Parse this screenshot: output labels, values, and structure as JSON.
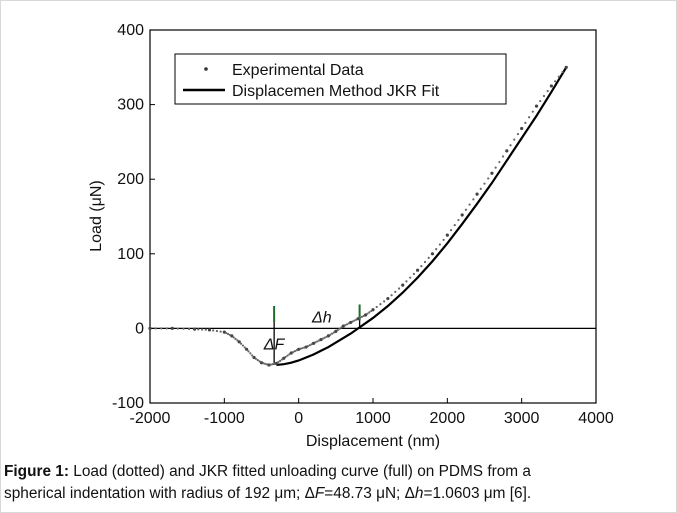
{
  "chart_data": {
    "type": "scatter",
    "xlabel": "Displacement (nm)",
    "ylabel": "Load (μN)",
    "xlim": [
      -2000,
      4000
    ],
    "ylim": [
      -100,
      400
    ],
    "xticks": [
      "-2000",
      "-1000",
      "0",
      "1000",
      "2000",
      "3000",
      "4000"
    ],
    "yticks": [
      "-100",
      "0",
      "100",
      "200",
      "300",
      "400"
    ],
    "grid": false,
    "legend_position": "top-left",
    "series": [
      {
        "name": "Experimental Data",
        "style": "dotted",
        "x": [
          -2000,
          -1700,
          -1400,
          -1200,
          -1000,
          -900,
          -800,
          -700,
          -600,
          -500,
          -400,
          -300,
          -200,
          -100,
          0,
          100,
          200,
          300,
          400,
          500,
          600,
          700,
          800,
          900,
          1000,
          1200,
          1400,
          1600,
          1800,
          2000,
          2200,
          2400,
          2600,
          2800,
          3000,
          3200,
          3400,
          3600
        ],
        "y": [
          0,
          0,
          -1,
          -2,
          -5,
          -10,
          -18,
          -28,
          -39,
          -46,
          -49,
          -47,
          -40,
          -33,
          -28,
          -25,
          -20,
          -15,
          -10,
          -4,
          3,
          8,
          13,
          18,
          25,
          40,
          58,
          78,
          100,
          125,
          152,
          180,
          208,
          238,
          268,
          298,
          325,
          350
        ]
      },
      {
        "name": "Displacemen Method JKR Fit",
        "style": "solid",
        "x": [
          -300,
          -200,
          -100,
          0,
          100,
          200,
          300,
          400,
          500,
          600,
          700,
          800,
          900,
          1000,
          1200,
          1400,
          1600,
          1800,
          2000,
          2200,
          2400,
          2600,
          2800,
          3000,
          3200,
          3400,
          3600
        ],
        "y": [
          -49,
          -48,
          -46,
          -43,
          -39,
          -35,
          -30,
          -25,
          -19,
          -13,
          -7,
          0,
          7,
          14,
          30,
          48,
          68,
          90,
          114,
          140,
          167,
          195,
          225,
          255,
          285,
          317,
          350
        ]
      }
    ],
    "annotations": [
      {
        "text": "ΔF",
        "x": -470,
        "y": -28
      },
      {
        "text": "Δh",
        "x": 180,
        "y": 8
      }
    ],
    "markers": [
      {
        "x": -330,
        "y0": -49,
        "y1": 30
      },
      {
        "x": 820,
        "y0": 0,
        "y1": 32
      }
    ]
  },
  "caption": {
    "label": "Figure 1:",
    "line1": " Load (dotted) and JKR fitted unloading curve (full) on PDMS from a",
    "line2_a": "spherical indentation with radius of 192 μm; Δ",
    "line2_f": "F",
    "line2_b": "=48.73 μN; Δ",
    "line2_h": "h",
    "line2_c": "=1.0603 μm [6]."
  }
}
